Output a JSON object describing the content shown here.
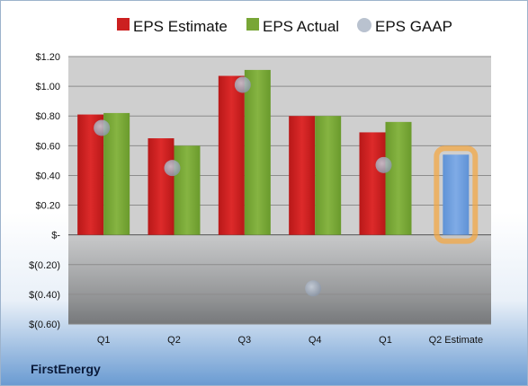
{
  "company": "FirstEnergy",
  "colors": {
    "estimate": "#cc2020",
    "actual": "#78a636",
    "gaap": "#a8b4c4",
    "future_estimate": "#6f9fdc",
    "highlight": "#f3a845"
  },
  "chart_data": {
    "type": "bar",
    "categories": [
      "Q1",
      "Q2",
      "Q3",
      "Q4",
      "Q1",
      "Q2 Estimate"
    ],
    "series": [
      {
        "name": "EPS Estimate",
        "values": [
          0.81,
          0.65,
          1.07,
          0.8,
          0.69,
          0.54
        ]
      },
      {
        "name": "EPS Actual",
        "values": [
          0.82,
          0.6,
          1.11,
          0.8,
          0.76,
          null
        ]
      },
      {
        "name": "EPS GAAP",
        "values": [
          0.72,
          0.45,
          1.01,
          -0.36,
          0.47,
          null
        ]
      }
    ],
    "yticks": [
      "$1.20",
      "$1.00",
      "$0.80",
      "$0.60",
      "$0.40",
      "$0.20",
      "$-",
      "$(0.20)",
      "$(0.40)",
      "$(0.60)"
    ],
    "ylim": [
      -0.6,
      1.2
    ],
    "grid": true,
    "legend_position": "top"
  }
}
